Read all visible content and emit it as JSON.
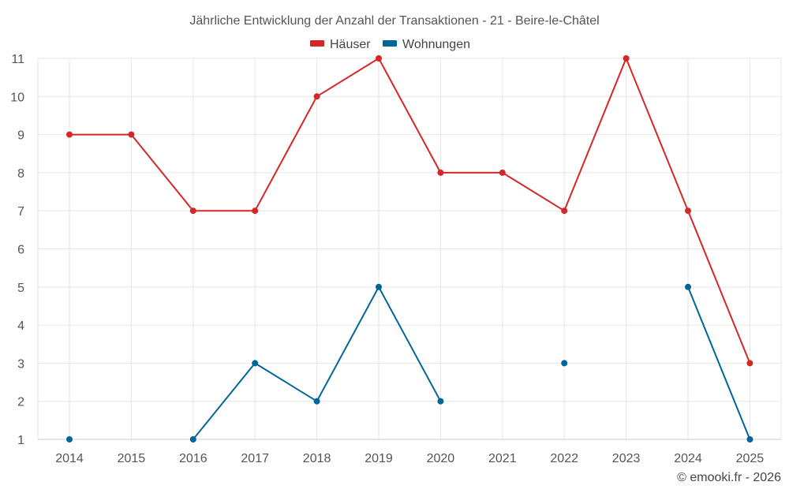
{
  "chart_data": {
    "type": "line",
    "title": "Jährliche Entwicklung der Anzahl der Transaktionen - 21 - Beire-le-Châtel",
    "categories": [
      "2014",
      "2015",
      "2016",
      "2017",
      "2018",
      "2019",
      "2020",
      "2021",
      "2022",
      "2023",
      "2024",
      "2025"
    ],
    "yticks": [
      "1",
      "2",
      "3",
      "4",
      "5",
      "6",
      "7",
      "8",
      "9",
      "10",
      "11"
    ],
    "ylim": [
      1,
      11
    ],
    "grid": true,
    "legend_position": "top-center",
    "series": [
      {
        "name": "Häuser",
        "color": "#d62728",
        "values": [
          9,
          9,
          7,
          7,
          10,
          11,
          8,
          8,
          7,
          11,
          7,
          3
        ]
      },
      {
        "name": "Wohnungen",
        "color": "#006699",
        "values": [
          1,
          null,
          1,
          3,
          2,
          5,
          2,
          null,
          3,
          null,
          5,
          1
        ]
      }
    ],
    "credit": "© emooki.fr - 2026"
  }
}
